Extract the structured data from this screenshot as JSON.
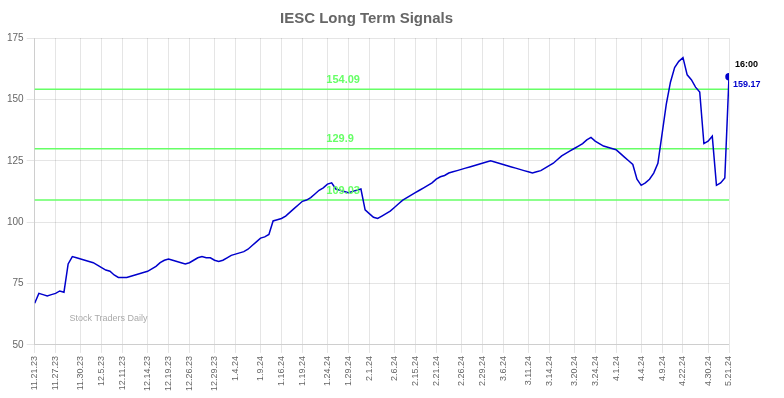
{
  "chart_data": {
    "type": "line",
    "title": "IESC Long Term Signals",
    "categories": [
      "11.21.23",
      null,
      null,
      null,
      null,
      "11.27.23",
      null,
      null,
      null,
      null,
      null,
      "11.30.23",
      null,
      null,
      null,
      null,
      "12.5.23",
      null,
      null,
      null,
      null,
      "12.11.23",
      null,
      null,
      null,
      null,
      null,
      "12.14.23",
      null,
      null,
      null,
      null,
      "12.19.23",
      null,
      null,
      null,
      null,
      "12.26.23",
      null,
      null,
      null,
      null,
      null,
      "12.29.23",
      null,
      null,
      null,
      null,
      "1.4.24",
      null,
      null,
      null,
      null,
      null,
      "1.9.24",
      null,
      null,
      null,
      null,
      "1.16.24",
      null,
      null,
      null,
      null,
      "1.19.24",
      null,
      null,
      null,
      null,
      null,
      "1.24.24",
      null,
      null,
      null,
      null,
      "1.29.24",
      null,
      null,
      null,
      null,
      "2.1.24",
      null,
      null,
      null,
      null,
      null,
      "2.6.24",
      null,
      null,
      null,
      null,
      "2.15.24",
      null,
      null,
      null,
      null,
      "2.21.24",
      null,
      null,
      null,
      null,
      null,
      "2.26.24",
      null,
      null,
      null,
      null,
      "2.29.24",
      null,
      null,
      null,
      null,
      "3.6.24",
      null,
      null,
      null,
      null,
      null,
      "3.11.24",
      null,
      null,
      null,
      null,
      "3.14.24",
      null,
      null,
      null,
      null,
      null,
      "3.20.24",
      null,
      null,
      null,
      null,
      "3.24.24",
      null,
      null,
      null,
      null,
      "4.1.24",
      null,
      null,
      null,
      null,
      null,
      "4.4.24",
      null,
      null,
      null,
      null,
      "4.9.24",
      null,
      null,
      null,
      null,
      "4.22.24",
      null,
      null,
      null,
      null,
      null,
      "4.30.24",
      null,
      null,
      null,
      null,
      "5.21.24"
    ],
    "values": [
      67.0,
      71.0,
      70.5,
      70.0,
      70.5,
      71.0,
      72.0,
      71.5,
      83.0,
      86.0,
      85.5,
      85.0,
      84.5,
      84.0,
      83.5,
      82.5,
      81.5,
      80.5,
      80.0,
      78.5,
      77.5,
      77.5,
      77.5,
      78.0,
      78.5,
      79.0,
      79.5,
      80.0,
      81.0,
      82.0,
      83.5,
      84.5,
      85.0,
      84.5,
      84.0,
      83.5,
      83.0,
      83.5,
      84.5,
      85.5,
      86.0,
      85.5,
      85.5,
      84.5,
      84.0,
      84.5,
      85.5,
      86.5,
      87.0,
      87.5,
      88.0,
      89.0,
      90.5,
      92.0,
      93.5,
      94.0,
      95.0,
      100.5,
      101.0,
      101.5,
      102.5,
      104.0,
      105.5,
      107.0,
      108.5,
      109.0,
      110.0,
      111.5,
      113.0,
      114.0,
      115.5,
      116.0,
      113.5,
      113.0,
      112.5,
      112.0,
      112.5,
      113.0,
      113.5,
      105.0,
      103.5,
      102.0,
      101.5,
      102.5,
      103.5,
      104.5,
      106.0,
      107.5,
      109.0,
      110.0,
      111.0,
      112.0,
      113.0,
      114.0,
      115.0,
      116.0,
      117.5,
      118.5,
      119.0,
      120.0,
      120.5,
      121.0,
      121.5,
      122.0,
      122.5,
      123.0,
      123.5,
      124.0,
      124.5,
      125.0,
      124.5,
      124.0,
      123.5,
      123.0,
      122.5,
      122.0,
      121.5,
      121.0,
      120.5,
      120.0,
      120.5,
      121.0,
      122.0,
      123.0,
      124.0,
      125.5,
      127.0,
      128.0,
      129.0,
      130.0,
      131.0,
      132.0,
      133.5,
      134.5,
      133.0,
      132.0,
      131.0,
      130.5,
      130.0,
      129.5,
      128.0,
      126.5,
      125.0,
      123.5,
      117.5,
      115.0,
      116.0,
      117.5,
      120.0,
      124.0,
      136.0,
      148.0,
      157.0,
      163.0,
      165.5,
      167.0,
      160.0,
      158.0,
      155.0,
      153.0,
      132.0,
      133.0,
      135.0,
      115.0,
      116.0,
      118.0,
      159.17
    ],
    "color": "#0000CC",
    "marker": "last",
    "ylim": [
      50,
      175
    ],
    "yticks": [
      50,
      75,
      100,
      125,
      150,
      175
    ],
    "grid": true,
    "hlines": [
      {
        "y": 154.09,
        "label": "154.09",
        "color": "#66FF66"
      },
      {
        "y": 129.9,
        "label": "129.9",
        "color": "#66FF66"
      },
      {
        "y": 109.03,
        "label": "109.03",
        "color": "#66FF66"
      }
    ],
    "annotations": [
      {
        "text": "16:00",
        "x": 166,
        "y": 159.17,
        "color": "#000000"
      },
      {
        "text": "159.17",
        "x": 166,
        "y": 159.17,
        "color": "#0000CC"
      },
      {
        "text": "Stock Traders Daily",
        "color": "#AAAAAA"
      }
    ]
  }
}
